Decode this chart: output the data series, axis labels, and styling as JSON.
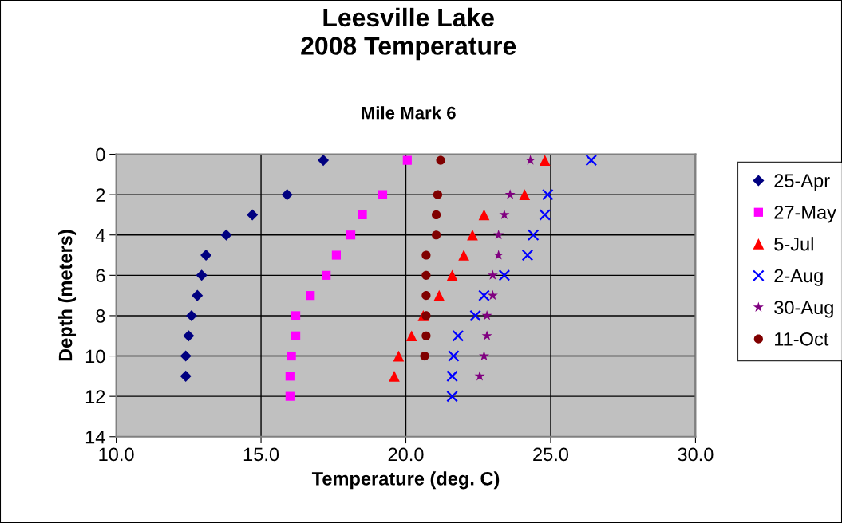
{
  "chart_data": {
    "type": "scatter",
    "title": "Leesville Lake\n2008 Temperature",
    "subtitle": "Mile Mark 6",
    "xlabel": "Temperature (deg. C)",
    "ylabel": "Depth (meters)",
    "xlim": [
      10,
      30
    ],
    "xticks": [
      {
        "value": 10,
        "label": "10.0"
      },
      {
        "value": 15,
        "label": "15.0"
      },
      {
        "value": 20,
        "label": "20.0"
      },
      {
        "value": 25,
        "label": "25.0"
      },
      {
        "value": 30,
        "label": "30.0"
      }
    ],
    "ylim": [
      14,
      0
    ],
    "yticks": [
      0,
      2,
      4,
      6,
      8,
      10,
      12,
      14
    ],
    "grid": true,
    "legend": "right",
    "series": [
      {
        "name": "25-Apr",
        "color": "#000080",
        "marker": "diamond",
        "x": [
          17.15,
          15.9,
          14.7,
          13.8,
          13.1,
          12.95,
          12.8,
          12.6,
          12.5,
          12.4,
          12.4
        ],
        "values": [
          0.3,
          2,
          3,
          4,
          5,
          6,
          7,
          8,
          9,
          10,
          11
        ]
      },
      {
        "name": "27-May",
        "color": "#ff00ff",
        "marker": "square",
        "x": [
          20.05,
          19.2,
          18.5,
          18.1,
          17.6,
          17.25,
          16.7,
          16.2,
          16.2,
          16.05,
          16.0,
          16.0
        ],
        "values": [
          0.3,
          2,
          3,
          4,
          5,
          6,
          7,
          8,
          9,
          10,
          11,
          12
        ]
      },
      {
        "name": "5-Jul",
        "color": "#ff0000",
        "marker": "triangle",
        "x": [
          24.8,
          24.1,
          22.7,
          22.3,
          22.0,
          21.6,
          21.15,
          20.6,
          20.2,
          19.75,
          19.6
        ],
        "values": [
          0.3,
          2,
          3,
          4,
          5,
          6,
          7,
          8,
          9,
          10,
          11
        ]
      },
      {
        "name": "2-Aug",
        "color": "#0000ff",
        "marker": "cross",
        "x": [
          26.4,
          24.9,
          24.8,
          24.4,
          24.2,
          23.4,
          22.7,
          22.4,
          21.8,
          21.65,
          21.6,
          21.6
        ],
        "values": [
          0.3,
          2,
          3,
          4,
          5,
          6,
          7,
          8,
          9,
          10,
          11,
          12
        ]
      },
      {
        "name": "30-Aug",
        "color": "#800080",
        "marker": "star",
        "x": [
          24.3,
          23.6,
          23.4,
          23.2,
          23.2,
          23.0,
          23.0,
          22.8,
          22.8,
          22.7,
          22.55
        ],
        "values": [
          0.3,
          2,
          3,
          4,
          5,
          6,
          7,
          8,
          9,
          10,
          11
        ]
      },
      {
        "name": "11-Oct",
        "color": "#800000",
        "marker": "circle",
        "x": [
          21.2,
          21.1,
          21.05,
          21.05,
          20.7,
          20.7,
          20.7,
          20.7,
          20.7,
          20.65
        ],
        "values": [
          0.3,
          2,
          3,
          4,
          5,
          6,
          7,
          8,
          9,
          10
        ]
      }
    ]
  }
}
